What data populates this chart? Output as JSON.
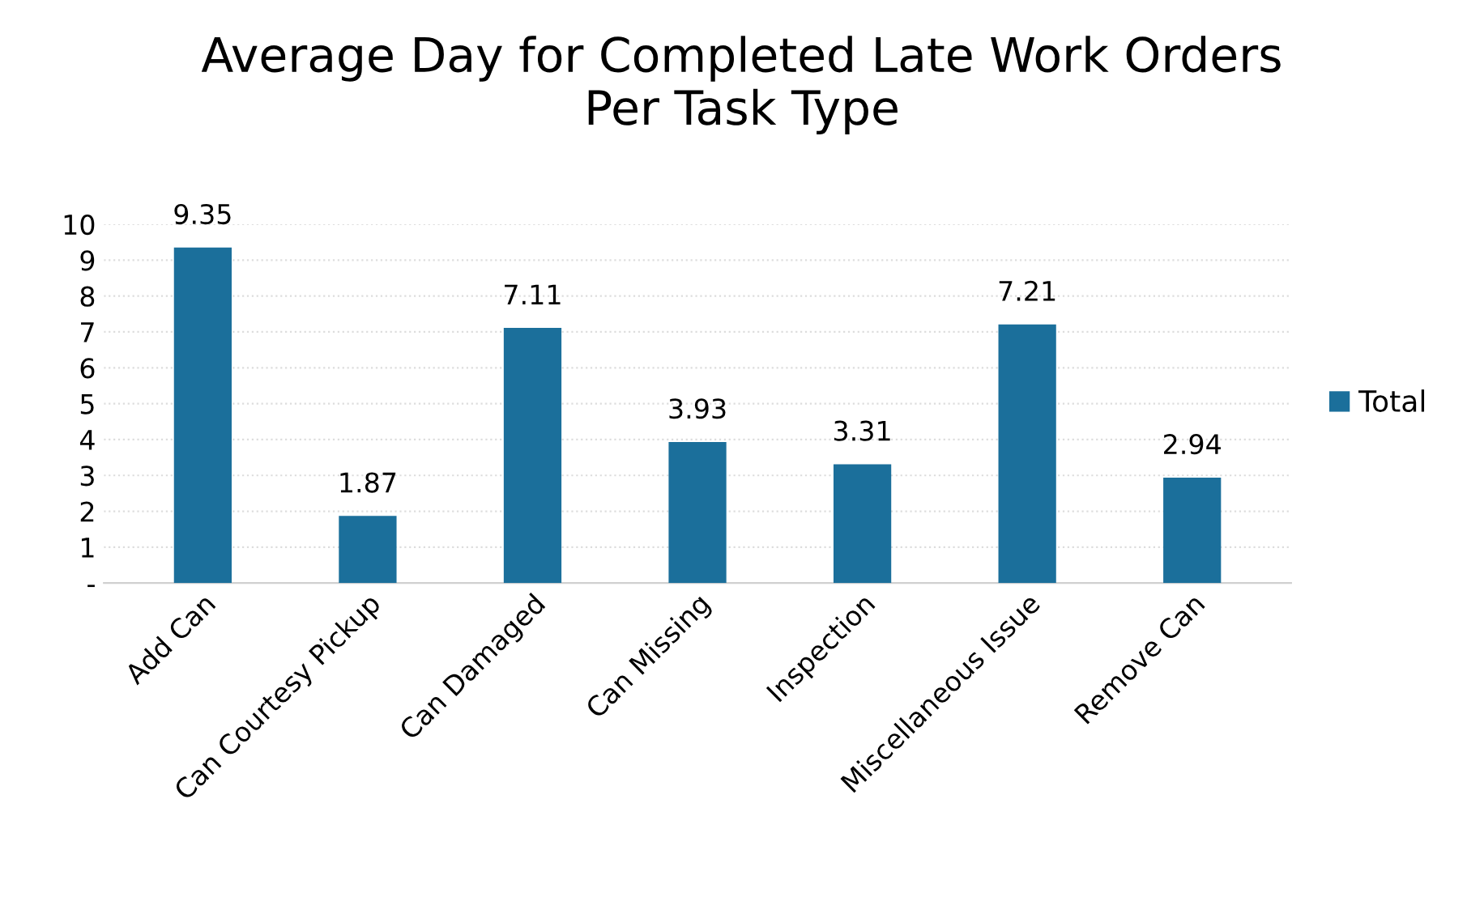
{
  "chart_data": {
    "type": "bar",
    "title": "Average Day for Completed Late Work Orders\nPer Task Type",
    "categories": [
      "Add Can",
      "Can Courtesy Pickup",
      "Can Damaged",
      "Can Missing",
      "Inspection",
      "Miscellaneous Issue",
      "Remove Can"
    ],
    "series": [
      {
        "name": "Total",
        "color": "#1b6f9b",
        "values": [
          9.35,
          1.87,
          7.11,
          3.93,
          3.31,
          7.21,
          2.94
        ]
      }
    ],
    "ylim": [
      0,
      10
    ],
    "yticks": [
      {
        "value": 0,
        "label": "-"
      },
      1,
      2,
      3,
      4,
      5,
      6,
      7,
      8,
      9,
      10
    ],
    "grid": "y",
    "legend": "right",
    "data_labels": true
  }
}
